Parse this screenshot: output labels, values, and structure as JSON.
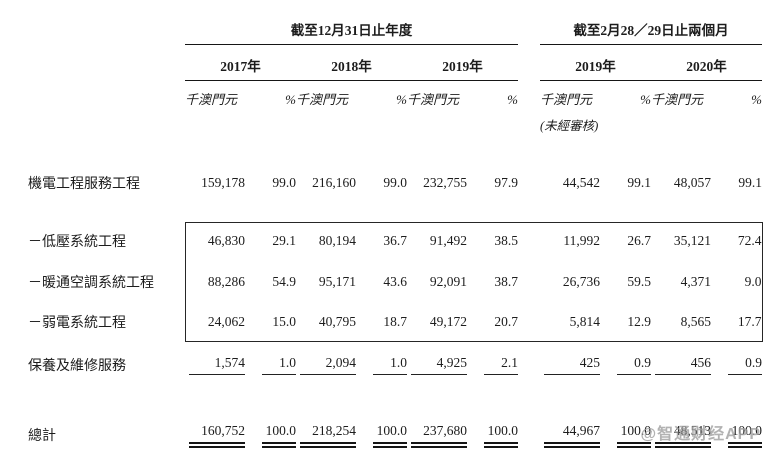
{
  "table": {
    "period_groups": [
      {
        "title": "截至12月31日止年度",
        "years": [
          "2017年",
          "2018年",
          "2019年"
        ]
      },
      {
        "title": "截至2月28／29日止兩個月",
        "years": [
          "2019年",
          "2020年"
        ]
      }
    ],
    "unit_label": "千澳門元",
    "pct_label": "%",
    "unaudited_note": "(未經審核)",
    "rows": [
      {
        "label": "機電工程服務工程",
        "v": [
          "159,178",
          "99.0",
          "216,160",
          "99.0",
          "232,755",
          "97.9",
          "44,542",
          "99.1",
          "48,057",
          "99.1"
        ]
      },
      {
        "label": "－低壓系統工程",
        "v": [
          "46,830",
          "29.1",
          "80,194",
          "36.7",
          "91,492",
          "38.5",
          "11,992",
          "26.7",
          "35,121",
          "72.4"
        ]
      },
      {
        "label": "－暖通空調系統工程",
        "v": [
          "88,286",
          "54.9",
          "95,171",
          "43.6",
          "92,091",
          "38.7",
          "26,736",
          "59.5",
          "4,371",
          "9.0"
        ]
      },
      {
        "label": "－弱電系統工程",
        "v": [
          "24,062",
          "15.0",
          "40,795",
          "18.7",
          "49,172",
          "20.7",
          "5,814",
          "12.9",
          "8,565",
          "17.7"
        ]
      },
      {
        "label": "保養及維修服務",
        "v": [
          "1,574",
          "1.0",
          "2,094",
          "1.0",
          "4,925",
          "2.1",
          "425",
          "0.9",
          "456",
          "0.9"
        ]
      },
      {
        "label": "總計",
        "v": [
          "160,752",
          "100.0",
          "218,254",
          "100.0",
          "237,680",
          "100.0",
          "44,967",
          "100.0",
          "48,513",
          "100.0"
        ]
      }
    ]
  },
  "watermark": {
    "text": "@智通财经APP"
  }
}
